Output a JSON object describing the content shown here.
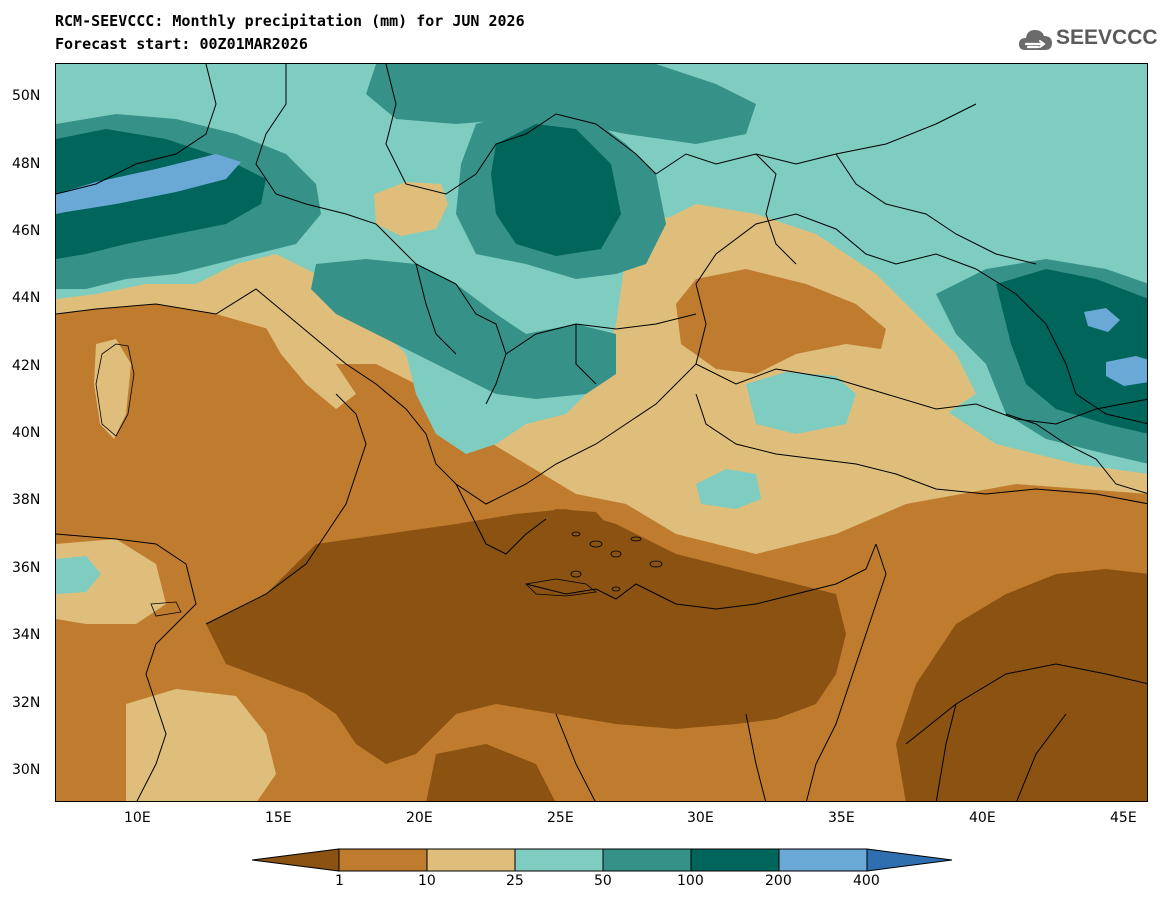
{
  "header": {
    "title_line1": "RCM-SEEVCCC: Monthly precipitation (mm) for JUN 2026",
    "title_line2": "Forecast start: 00Z01MAR2026"
  },
  "logo": {
    "text": "SEEVCCC",
    "icon": "cloud-icon"
  },
  "map": {
    "lat_labels": [
      "50N",
      "48N",
      "46N",
      "44N",
      "42N",
      "40N",
      "38N",
      "36N",
      "34N",
      "32N",
      "30N"
    ],
    "lon_labels": [
      "10E",
      "15E",
      "20E",
      "25E",
      "30E",
      "35E",
      "40E",
      "45E"
    ]
  },
  "colorbar": {
    "labels": [
      "1",
      "10",
      "25",
      "50",
      "100",
      "200",
      "400"
    ],
    "colors": [
      "#8b5212",
      "#c07c2e",
      "#dfbe7b",
      "#7ecdc0",
      "#369289",
      "#00665c",
      "#6aa9d6",
      "#2f6fb0"
    ]
  },
  "palette": {
    "very_dry": "#8b5212",
    "dry": "#c07c2e",
    "moderate_dry": "#dfbe7b",
    "moderate_wet": "#7ecdc0",
    "wet": "#369289",
    "very_wet": "#00665c",
    "extreme_wet": "#6aa9d6",
    "border": "#000000"
  }
}
